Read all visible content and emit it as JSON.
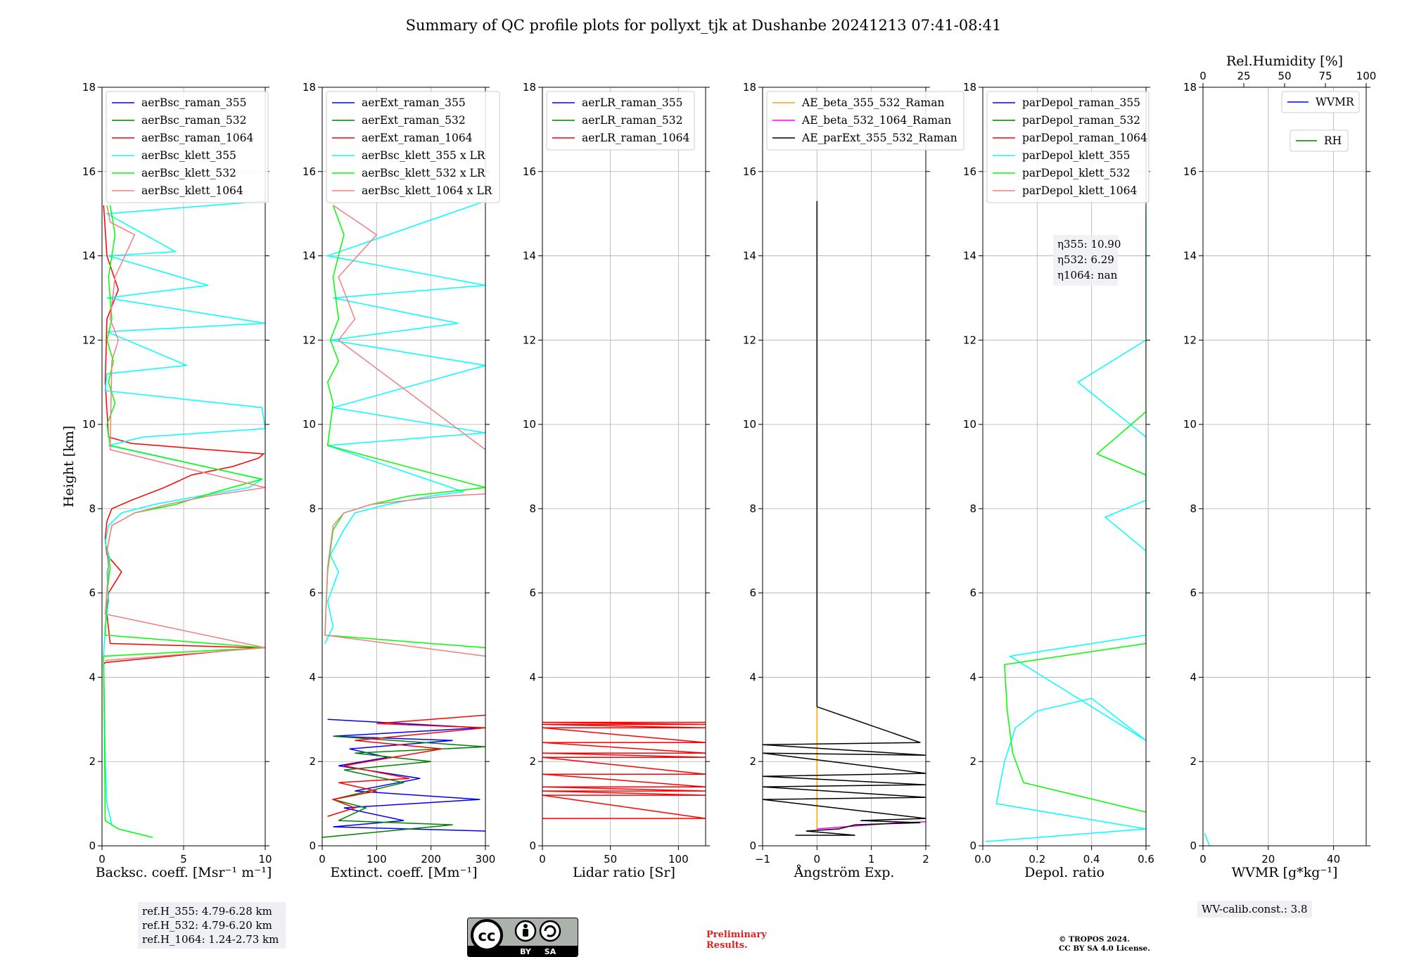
{
  "title": "Summary of QC profile plots for pollyxt_tjk at Dushanbe 20241213 07:41-08:41",
  "ref_heights": [
    "ref.H_355: 4.79-6.28 km",
    "ref.H_532: 4.79-6.20 km",
    "ref.H_1064: 1.24-2.73 km"
  ],
  "wv_calib": "WV-calib.const.: 3.8",
  "cc_license": {
    "by": "BY",
    "sa": "SA"
  },
  "preliminary": [
    "Preliminary",
    "Results."
  ],
  "copyright": [
    "© TROPOS 2024.",
    "CC BY SA 4.0 License."
  ],
  "colors": {
    "blue": "#0000ff",
    "green": "#008000",
    "red": "#ff0000",
    "cyan": "#00ffff",
    "lime": "#00ff00",
    "salmon": "#f08080",
    "orange": "#ffa500",
    "magenta": "#ff00ff",
    "black": "#000000"
  },
  "chart_data": [
    {
      "type": "line",
      "ylabel": "Height [km]",
      "xlabel": "Backsc. coeff. [Msr⁻¹ m⁻¹]",
      "xlim": [
        0,
        10
      ],
      "ylim": [
        0,
        18
      ],
      "xticks": [
        "0",
        "5",
        "10"
      ],
      "yticks": [
        "0",
        "2",
        "4",
        "6",
        "8",
        "10",
        "12",
        "14",
        "16",
        "18"
      ],
      "grid": true,
      "legend": "top-left",
      "series": [
        {
          "name": "aerBsc_raman_355",
          "color": "#0000ff",
          "x": [],
          "y": []
        },
        {
          "name": "aerBsc_raman_532",
          "color": "#008000",
          "x": [],
          "y": []
        },
        {
          "name": "aerBsc_raman_1064",
          "color": "#ff0000",
          "x": [
            0.1,
            0.1,
            0.2,
            9.5,
            0.5,
            0.3,
            0.4,
            1.2,
            0.3,
            0.2,
            0.3,
            0.6,
            1.8,
            3.8,
            5.5,
            8.0,
            9.6,
            9.9,
            6.5,
            1.8,
            0.4,
            0.2,
            0.3,
            1.0,
            0.3,
            0.1
          ],
          "y": [
            4.2,
            4.3,
            4.35,
            4.7,
            4.8,
            5.5,
            6.0,
            6.5,
            6.9,
            7.3,
            7.7,
            8.0,
            8.2,
            8.5,
            8.8,
            9.0,
            9.2,
            9.3,
            9.4,
            9.55,
            9.7,
            11.0,
            12.5,
            13.2,
            14.0,
            15.2
          ]
        },
        {
          "name": "aerBsc_klett_355",
          "color": "#00ffff",
          "x": [
            0.6,
            0.3,
            0.2,
            0.1,
            0.2,
            0.4,
            0.3,
            0.5,
            0.2,
            0.4,
            1.2,
            3.2,
            6.0,
            9.0,
            9.8,
            0.4,
            2.5,
            10.0,
            9.8,
            0.2,
            0.3,
            5.2,
            0.3,
            10.0,
            0.3,
            6.5,
            0.4,
            4.5,
            0.3,
            10.0
          ],
          "y": [
            0.5,
            1.0,
            2.0,
            4.5,
            5.2,
            5.8,
            6.5,
            6.8,
            7.2,
            7.6,
            7.9,
            8.1,
            8.3,
            8.5,
            8.7,
            9.5,
            9.7,
            9.9,
            10.4,
            10.8,
            11.2,
            11.4,
            12.2,
            12.4,
            13.0,
            13.3,
            14.0,
            14.1,
            15.0,
            15.3
          ]
        },
        {
          "name": "aerBsc_klett_532",
          "color": "#00ff00",
          "x": [
            3.1,
            1.0,
            0.2,
            0.1,
            10.0,
            0.2,
            0.3,
            0.5,
            0.3,
            0.6,
            2.0,
            4.5,
            7.0,
            9.8,
            0.5,
            0.3,
            0.8,
            0.4,
            0.7,
            0.3,
            0.6,
            0.4,
            0.8,
            0.5
          ],
          "y": [
            0.2,
            0.4,
            0.6,
            4.5,
            4.7,
            5.0,
            6.0,
            6.6,
            7.0,
            7.6,
            7.9,
            8.1,
            8.4,
            8.7,
            9.5,
            10.0,
            10.5,
            11.0,
            11.5,
            12.0,
            12.5,
            13.5,
            14.5,
            15.2
          ]
        },
        {
          "name": "aerBsc_klett_1064",
          "color": "#f08080",
          "x": [
            0.2,
            10.0,
            0.2,
            0.4,
            0.3,
            0.6,
            2.0,
            4.0,
            6.5,
            10.0,
            0.5,
            0.6,
            1.0,
            0.5,
            0.8,
            2.0,
            0.5,
            0.3
          ],
          "y": [
            4.4,
            4.7,
            5.5,
            6.6,
            7.0,
            7.6,
            7.9,
            8.1,
            8.3,
            8.5,
            9.4,
            11.5,
            12.0,
            12.5,
            13.5,
            14.5,
            14.8,
            15.2
          ]
        }
      ]
    },
    {
      "type": "line",
      "ylabel": "",
      "xlabel": "Extinct. coeff. [Mm⁻¹]",
      "xlim": [
        0,
        300
      ],
      "ylim": [
        0,
        18
      ],
      "xticks": [
        "0",
        "100",
        "200",
        "300"
      ],
      "yticks": [
        "0",
        "2",
        "4",
        "6",
        "8",
        "10",
        "12",
        "14",
        "16",
        "18"
      ],
      "grid": true,
      "legend": "top-left",
      "series": [
        {
          "name": "aerExt_raman_355",
          "color": "#0000ff",
          "x": [
            300,
            20,
            150,
            40,
            290,
            60,
            180,
            30,
            120,
            50,
            240,
            20,
            290,
            10
          ],
          "y": [
            0.35,
            0.45,
            0.6,
            0.9,
            1.1,
            1.3,
            1.6,
            1.9,
            2.1,
            2.3,
            2.5,
            2.6,
            2.8,
            3.0
          ]
        },
        {
          "name": "aerExt_raman_532",
          "color": "#008000",
          "x": [
            0,
            240,
            30,
            80,
            20,
            150,
            40,
            200,
            60,
            300,
            20
          ],
          "y": [
            0.2,
            0.5,
            0.6,
            0.9,
            1.1,
            1.5,
            1.8,
            2.0,
            2.2,
            2.35,
            2.6
          ]
        },
        {
          "name": "aerExt_raman_1064",
          "color": "#ff0000",
          "x": [
            10,
            60,
            20,
            100,
            30,
            160,
            40,
            220,
            60,
            300,
            100,
            300
          ],
          "y": [
            0.7,
            0.9,
            1.1,
            1.3,
            1.5,
            1.6,
            1.9,
            2.3,
            2.5,
            2.8,
            2.9,
            3.1
          ]
        },
        {
          "name": "aerBsc_klett_355 x LR",
          "color": "#00ffff",
          "x": [
            5,
            20,
            10,
            30,
            15,
            40,
            60,
            120,
            200,
            260,
            10,
            300,
            20,
            300,
            15,
            250,
            20,
            300,
            10,
            300
          ],
          "y": [
            4.8,
            5.2,
            5.8,
            6.5,
            6.9,
            7.5,
            7.9,
            8.1,
            8.3,
            8.4,
            9.5,
            9.8,
            10.4,
            11.4,
            12.0,
            12.4,
            13.0,
            13.3,
            14.0,
            15.3
          ]
        },
        {
          "name": "aerBsc_klett_532 x LR",
          "color": "#00ff00",
          "x": [
            300,
            5,
            10,
            20,
            40,
            90,
            160,
            230,
            300,
            10,
            20,
            10,
            30,
            15,
            30,
            20,
            40,
            20
          ],
          "y": [
            4.7,
            5.0,
            6.5,
            7.5,
            7.9,
            8.1,
            8.3,
            8.4,
            8.5,
            9.5,
            10.5,
            11.0,
            11.5,
            12.0,
            12.5,
            13.5,
            14.5,
            15.2
          ]
        },
        {
          "name": "aerBsc_klett_1064 x LR",
          "color": "#f08080",
          "x": [
            300,
            5,
            10,
            20,
            40,
            90,
            160,
            230,
            300,
            300,
            30,
            60,
            30,
            100,
            20
          ],
          "y": [
            4.5,
            5.0,
            6.6,
            7.6,
            7.9,
            8.1,
            8.2,
            8.3,
            8.35,
            9.4,
            12.0,
            12.5,
            13.5,
            14.5,
            15.2
          ]
        }
      ]
    },
    {
      "type": "line",
      "ylabel": "",
      "xlabel": "Lidar ratio [Sr]",
      "xlim": [
        0,
        120
      ],
      "ylim": [
        0,
        18
      ],
      "xticks": [
        "0",
        "50",
        "100"
      ],
      "yticks": [
        "0",
        "2",
        "4",
        "6",
        "8",
        "10",
        "12",
        "14",
        "16",
        "18"
      ],
      "grid": true,
      "legend": "top-left",
      "series": [
        {
          "name": "aerLR_raman_355",
          "color": "#0000ff",
          "x": [],
          "y": []
        },
        {
          "name": "aerLR_raman_532",
          "color": "#008000",
          "x": [],
          "y": []
        },
        {
          "name": "aerLR_raman_1064",
          "color": "#ff0000",
          "x": [
            0,
            120,
            0,
            120,
            0,
            120,
            0,
            120,
            0,
            120,
            0,
            120,
            0,
            120,
            0,
            120,
            0,
            120,
            0,
            120,
            0,
            120
          ],
          "y": [
            0.65,
            0.65,
            1.2,
            1.2,
            1.3,
            1.3,
            1.4,
            1.4,
            1.7,
            1.7,
            2.1,
            2.1,
            2.2,
            2.2,
            2.45,
            2.45,
            2.8,
            2.8,
            2.88,
            2.88,
            2.93,
            2.93
          ]
        }
      ]
    },
    {
      "type": "line",
      "ylabel": "",
      "xlabel": "Ångström Exp.",
      "xlim": [
        -1,
        2
      ],
      "ylim": [
        0,
        18
      ],
      "xticks": [
        "−1",
        "0",
        "1",
        "2"
      ],
      "yticks": [
        "0",
        "2",
        "4",
        "6",
        "8",
        "10",
        "12",
        "14",
        "16",
        "18"
      ],
      "grid": true,
      "legend": "top-left",
      "series": [
        {
          "name": "AE_beta_355_532_Raman",
          "color": "#ffa500",
          "x": [
            0,
            0
          ],
          "y": [
            0.4,
            3.3
          ]
        },
        {
          "name": "AE_beta_532_1064_Raman",
          "color": "#ff00ff",
          "x": [
            0,
            0.5,
            1.0,
            1.5,
            2.0
          ],
          "y": [
            0.4,
            0.45,
            0.5,
            0.55,
            0.57
          ]
        },
        {
          "name": "AE_parExt_355_532_Raman",
          "color": "#000000",
          "x": [
            -0.4,
            0.7,
            -0.2,
            0.4,
            0.7,
            1.9,
            0.8,
            2.0,
            -1.0,
            2.0,
            -1.0,
            2.0,
            -1.0,
            2.0,
            -1.0,
            2.0,
            -1.0,
            1.9,
            0,
            0
          ],
          "y": [
            0.25,
            0.25,
            0.35,
            0.4,
            0.5,
            0.55,
            0.6,
            0.65,
            1.1,
            1.15,
            1.4,
            1.45,
            1.65,
            1.72,
            2.2,
            2.15,
            2.4,
            2.45,
            3.3,
            15.3
          ]
        }
      ]
    },
    {
      "type": "line",
      "ylabel": "",
      "xlabel": "Depol. ratio",
      "xlim": [
        0,
        0.6
      ],
      "ylim": [
        0,
        18
      ],
      "xticks": [
        "0.0",
        "0.2",
        "0.4",
        "0.6"
      ],
      "yticks": [
        "0",
        "2",
        "4",
        "6",
        "8",
        "10",
        "12",
        "14",
        "16",
        "18"
      ],
      "grid": true,
      "legend": "top-left",
      "series": [
        {
          "name": "parDepol_raman_355",
          "color": "#0000ff",
          "x": [],
          "y": []
        },
        {
          "name": "parDepol_raman_532",
          "color": "#008000",
          "x": [],
          "y": []
        },
        {
          "name": "parDepol_raman_1064",
          "color": "#ff0000",
          "x": [],
          "y": []
        },
        {
          "name": "parDepol_klett_355",
          "color": "#00ffff",
          "x": [
            0.01,
            0.6,
            0.05,
            0.08,
            0.12,
            0.2,
            0.4,
            0.6,
            0.1,
            0.6,
            0.6,
            0.6,
            0.6,
            0.45,
            0.6,
            0.6,
            0.6,
            0.35,
            0.6,
            0.6
          ],
          "y": [
            0.1,
            0.4,
            1.0,
            2.0,
            2.8,
            3.2,
            3.5,
            2.5,
            4.5,
            5.0,
            5.6,
            6.2,
            7.0,
            7.8,
            8.2,
            8.6,
            9.7,
            11.0,
            12.0,
            15.2
          ]
        },
        {
          "name": "parDepol_klett_532",
          "color": "#00ff00",
          "x": [
            0.6,
            0.15,
            0.11,
            0.09,
            0.08,
            0.6,
            0.6,
            0.6,
            0.6,
            0.6,
            0.6,
            0.6,
            0.6,
            0.6,
            0.42,
            0.6,
            0.6,
            0.6,
            0.6,
            0.6
          ],
          "y": [
            0.8,
            1.5,
            2.2,
            3.2,
            4.3,
            4.8,
            5.5,
            6.1,
            6.6,
            7.0,
            7.4,
            7.9,
            8.2,
            8.8,
            9.3,
            10.3,
            11.2,
            12.5,
            13.8,
            15.0
          ]
        },
        {
          "name": "parDepol_klett_1064",
          "color": "#f08080",
          "x": [],
          "y": []
        }
      ],
      "annotations": [
        "η355: 10.90",
        "η532: 6.29",
        "η1064: nan"
      ]
    },
    {
      "type": "line",
      "ylabel": "",
      "xlabel": "WVMR [g*kg⁻¹]",
      "xlim": [
        0,
        50
      ],
      "ylim": [
        0,
        18
      ],
      "xticks": [
        "0",
        "20",
        "40"
      ],
      "yticks": [
        "0",
        "2",
        "4",
        "6",
        "8",
        "10",
        "12",
        "14",
        "16",
        "18"
      ],
      "x2label": "Rel.Humidity [%]",
      "x2lim": [
        0,
        100
      ],
      "x2ticks": [
        "0",
        "25",
        "50",
        "75",
        "100"
      ],
      "grid": true,
      "legend": "top-right",
      "series": [
        {
          "name": "WVMR",
          "color": "#0000ff",
          "x": [],
          "y": []
        },
        {
          "name": "RH",
          "color": "#008000",
          "x": [],
          "y": []
        },
        {
          "name": "",
          "color": "#00ffff",
          "x": [
            2.0,
            1.5,
            1.0,
            0.5
          ],
          "y": [
            0.0,
            0.1,
            0.2,
            0.3
          ]
        }
      ]
    }
  ]
}
